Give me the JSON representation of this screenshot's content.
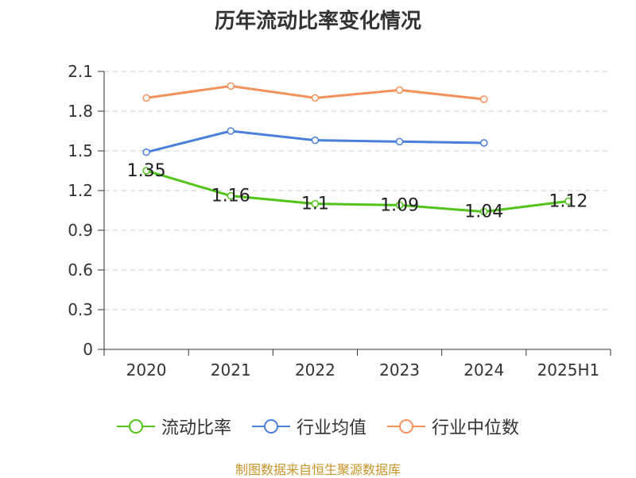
{
  "title": "历年流动比率变化情况",
  "source": "制图数据来自恒生聚源数据库",
  "chart_data": {
    "type": "line",
    "categories": [
      "2020",
      "2021",
      "2022",
      "2023",
      "2024",
      "2025H1"
    ],
    "ylim": [
      0,
      2.1
    ],
    "yticks": [
      "0",
      "0.3",
      "0.6",
      "0.9",
      "1.2",
      "1.5",
      "1.8",
      "2.1"
    ],
    "grid": true,
    "legend_position": "bottom",
    "series": [
      {
        "name": "流动比率",
        "color": "#52c41a",
        "values": [
          1.35,
          1.16,
          1.1,
          1.09,
          1.04,
          1.12
        ],
        "labels": [
          "1.35",
          "1.16",
          "1.1",
          "1.09",
          "1.04",
          "1.12"
        ]
      },
      {
        "name": "行业均值",
        "color": "#4a7fdb",
        "values": [
          1.49,
          1.65,
          1.58,
          1.57,
          1.56,
          null
        ]
      },
      {
        "name": "行业中位数",
        "color": "#f5915a",
        "values": [
          1.9,
          1.99,
          1.9,
          1.96,
          1.89,
          null
        ]
      }
    ]
  }
}
